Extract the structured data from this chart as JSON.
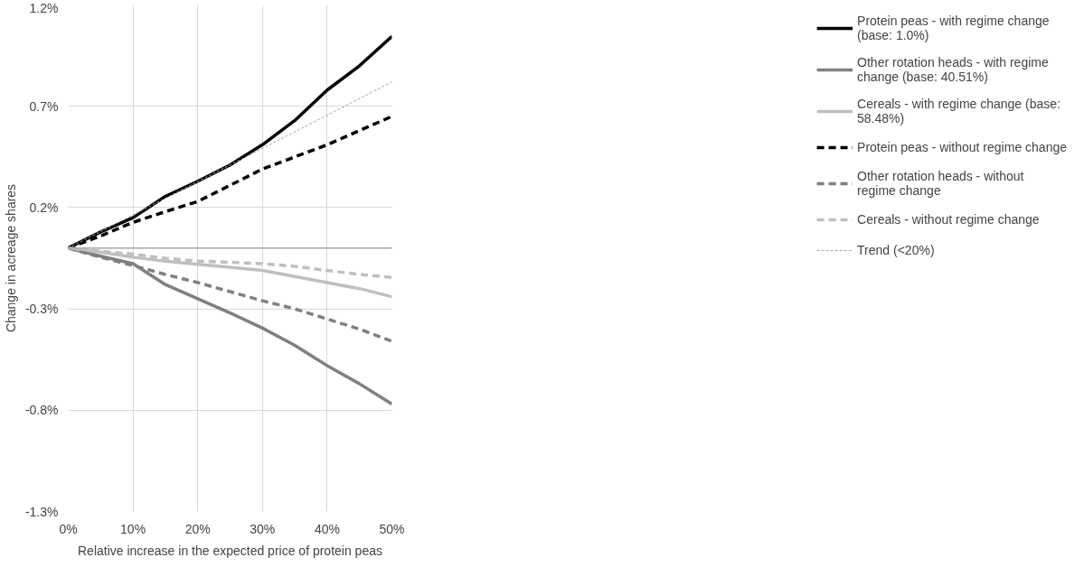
{
  "chart_data": {
    "type": "line",
    "xlabel": "Relative increase in the expected price of protein peas",
    "ylabel": "Change in acreage shares",
    "x": [
      0,
      5,
      10,
      15,
      20,
      25,
      30,
      35,
      40,
      45,
      50
    ],
    "xlim": [
      0,
      50
    ],
    "xticks": [
      {
        "value": 0,
        "label": "0%"
      },
      {
        "value": 10,
        "label": "10%"
      },
      {
        "value": 20,
        "label": "20%"
      },
      {
        "value": 30,
        "label": "30%"
      },
      {
        "value": 40,
        "label": "40%"
      },
      {
        "value": 50,
        "label": "50%"
      }
    ],
    "ylim": [
      -1.3,
      1.2
    ],
    "yticks": [
      {
        "value": -1.3,
        "label": "-1.3%"
      },
      {
        "value": -0.8,
        "label": "-0.8%"
      },
      {
        "value": -0.3,
        "label": "-0.3%"
      },
      {
        "value": 0.2,
        "label": "0.2%"
      },
      {
        "value": 0.7,
        "label": "0.7%"
      },
      {
        "value": 1.2,
        "label": "1.2%"
      }
    ],
    "grid": true,
    "legend": "right",
    "marker": "none",
    "ref_lines": [
      {
        "axis": "y",
        "value": 0,
        "color": "#a6a6a6"
      }
    ],
    "series": [
      {
        "name": "Protein peas - with regime change (base: 1.0%)",
        "color": "#000000",
        "line_style": "solid",
        "values": [
          0,
          0.08,
          0.15,
          0.255,
          0.33,
          0.41,
          0.51,
          0.63,
          0.78,
          0.9,
          1.045
        ]
      },
      {
        "name": "Other rotation heads - with regime change (base: 40.51%)",
        "color": "#808080",
        "line_style": "solid",
        "values": [
          0,
          -0.04,
          -0.077,
          -0.18,
          -0.25,
          -0.32,
          -0.395,
          -0.48,
          -0.58,
          -0.67,
          -0.77
        ]
      },
      {
        "name": "Cereals - with regime change (base: 58.48%)",
        "color": "#bfbfbf",
        "line_style": "solid",
        "values": [
          0,
          -0.02,
          -0.045,
          -0.065,
          -0.08,
          -0.095,
          -0.11,
          -0.14,
          -0.17,
          -0.2,
          -0.24
        ]
      },
      {
        "name": "Protein peas - without regime change",
        "color": "#000000",
        "line_style": "dashed",
        "values": [
          0,
          0.06,
          0.127,
          0.18,
          0.23,
          0.31,
          0.39,
          0.45,
          0.51,
          0.58,
          0.65
        ]
      },
      {
        "name": "Other rotation heads - without regime change",
        "color": "#808080",
        "line_style": "dashed",
        "values": [
          0,
          -0.045,
          -0.086,
          -0.13,
          -0.17,
          -0.215,
          -0.26,
          -0.3,
          -0.35,
          -0.4,
          -0.46
        ]
      },
      {
        "name": "Cereals - without regime change",
        "color": "#bfbfbf",
        "line_style": "dashed",
        "values": [
          0,
          -0.015,
          -0.03,
          -0.05,
          -0.064,
          -0.07,
          -0.077,
          -0.09,
          -0.11,
          -0.13,
          -0.145
        ]
      },
      {
        "name": "Trend (<20%)",
        "color": "#a6a6a6",
        "line_style": "dotted",
        "x": [
          0,
          50
        ],
        "values": [
          0,
          0.82
        ]
      }
    ]
  }
}
